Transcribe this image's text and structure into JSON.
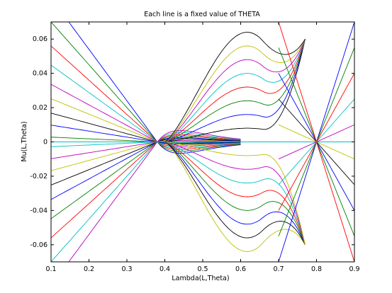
{
  "chart_data": {
    "type": "line",
    "title": "Each line is a fixed value of THETA",
    "xlabel": "Lambda(L,Theta)",
    "ylabel": "Mu(L,Theta)",
    "xlim": [
      0.1,
      0.9
    ],
    "ylim": [
      -0.07,
      0.07
    ],
    "x_ticks": [
      0.1,
      0.2,
      0.3,
      0.4,
      0.5,
      0.6,
      0.7,
      0.8,
      0.9
    ],
    "x_tick_labels": [
      "0.1",
      "0.2",
      "0.3",
      "0.4",
      "0.5",
      "0.6",
      "0.7",
      "0.8",
      "0.9"
    ],
    "y_ticks": [
      0.06,
      0.04,
      0.02,
      0,
      -0.02,
      -0.04,
      -0.06
    ],
    "y_tick_labels": [
      "0.06",
      "0.04",
      "0.02",
      "0",
      "-0.02",
      "-0.04",
      "-0.06"
    ],
    "grid": false,
    "colors": [
      "#0000ff",
      "#008000",
      "#ff0000",
      "#00bfbf",
      "#bf00bf",
      "#bfbf00",
      "#000000"
    ],
    "families": [
      {
        "description_shape": "lines through crossing point near lambda 0.38",
        "x": [
          0.1,
          0.38,
          0.6
        ],
        "slopes": [
          -0.3,
          -0.25,
          -0.2,
          -0.16,
          -0.12,
          -0.09,
          -0.06,
          -0.035,
          -0.01,
          0.0,
          0.01,
          0.035,
          0.06,
          0.09,
          0.12,
          0.16,
          0.2,
          0.25,
          0.3
        ]
      },
      {
        "description_shape": "curves bulging around lambda 0.6",
        "x": [
          0.4,
          0.61,
          0.77
        ],
        "peak_values": [
          -0.064,
          -0.056,
          -0.048,
          -0.04,
          -0.032,
          -0.024,
          -0.016,
          -0.008,
          0.008,
          0.016,
          0.024,
          0.032,
          0.04,
          0.048,
          0.056,
          0.064
        ]
      },
      {
        "description_shape": "crossing lines on right side",
        "x": [
          0.7,
          0.9
        ],
        "y_at_start": [
          -0.07,
          -0.055,
          -0.04,
          -0.025,
          -0.01,
          0.01,
          0.025,
          0.04,
          0.055,
          0.07
        ],
        "y_at_end": [
          0.07,
          0.055,
          0.04,
          0.025,
          0.01,
          -0.01,
          -0.025,
          -0.04,
          -0.055,
          -0.07
        ]
      }
    ]
  }
}
